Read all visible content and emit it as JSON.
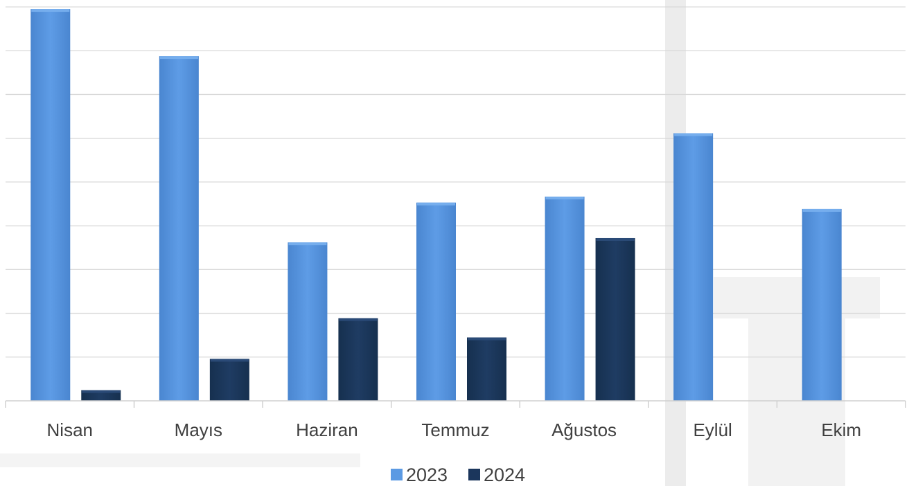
{
  "chart_data": {
    "type": "bar",
    "categories": [
      "Nisan",
      "Mayıs",
      "Haziran",
      "Temmuz",
      "Ağustos",
      "Eylül",
      "Ekim"
    ],
    "series": [
      {
        "name": "2023",
        "values": [
          9.15,
          8.05,
          3.7,
          4.63,
          4.77,
          6.25,
          4.48
        ],
        "color": "#5b9ae3"
      },
      {
        "name": "2024",
        "values": [
          0.25,
          0.98,
          1.93,
          1.48,
          3.8,
          null,
          null
        ],
        "color": "#1b365c"
      }
    ],
    "ylim": [
      0,
      9.2
    ],
    "grid": true,
    "legend": "bottom",
    "title": "",
    "xlabel": "",
    "ylabel": ""
  }
}
